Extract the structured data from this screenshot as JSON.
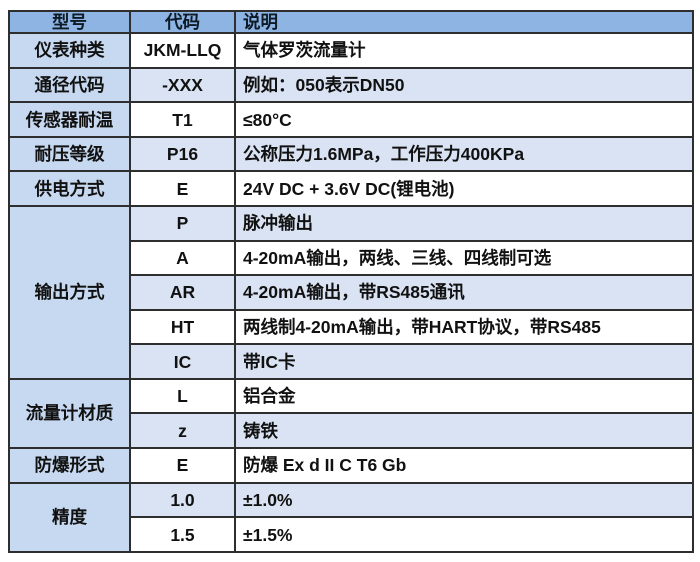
{
  "table": {
    "colors": {
      "header_bg": "#8DB4E2",
      "first_col_bg": "#C6D9F0",
      "row_alt_bg": "#DAE3F3",
      "row_white_bg": "#FFFFFF",
      "border_color": "#2e2e2e",
      "text": "#111111"
    },
    "header": {
      "columns": [
        "型号",
        "代码",
        "说明"
      ]
    },
    "groups": [
      {
        "model": "仪表种类",
        "rows": [
          {
            "code": "JKM-LLQ",
            "desc": "气体罗茨流量计"
          }
        ]
      },
      {
        "model": "通径代码",
        "rows": [
          {
            "code": "-XXX",
            "desc": "例如：050表示DN50"
          }
        ]
      },
      {
        "model": "传感器耐温",
        "rows": [
          {
            "code": "T1",
            "desc": "≤80°C"
          }
        ]
      },
      {
        "model": "耐压等级",
        "rows": [
          {
            "code": "P16",
            "desc": "公称压力1.6MPa，工作压力400KPa"
          }
        ]
      },
      {
        "model": "供电方式",
        "rows": [
          {
            "code": "E",
            "desc": "24V DC + 3.6V DC(锂电池)"
          }
        ]
      },
      {
        "model": "输出方式",
        "rows": [
          {
            "code": "P",
            "desc": "脉冲输出"
          },
          {
            "code": "A",
            "desc": "4-20mA输出，两线、三线、四线制可选"
          },
          {
            "code": "AR",
            "desc": "4-20mA输出，带RS485通讯"
          },
          {
            "code": "HT",
            "desc": "两线制4-20mA输出，带HART协议，带RS485"
          },
          {
            "code": "IC",
            "desc": "带IC卡"
          }
        ]
      },
      {
        "model": "流量计材质",
        "rows": [
          {
            "code": "L",
            "desc": "铝合金"
          },
          {
            "code": "z",
            "desc": "铸铁"
          }
        ]
      },
      {
        "model": "防爆形式",
        "rows": [
          {
            "code": "E",
            "desc": "防爆 Ex d II C T6 Gb"
          }
        ]
      },
      {
        "model": "精度",
        "rows": [
          {
            "code": "1.0",
            "desc": "±1.0%"
          },
          {
            "code": "1.5",
            "desc": "±1.5%"
          }
        ]
      }
    ]
  }
}
